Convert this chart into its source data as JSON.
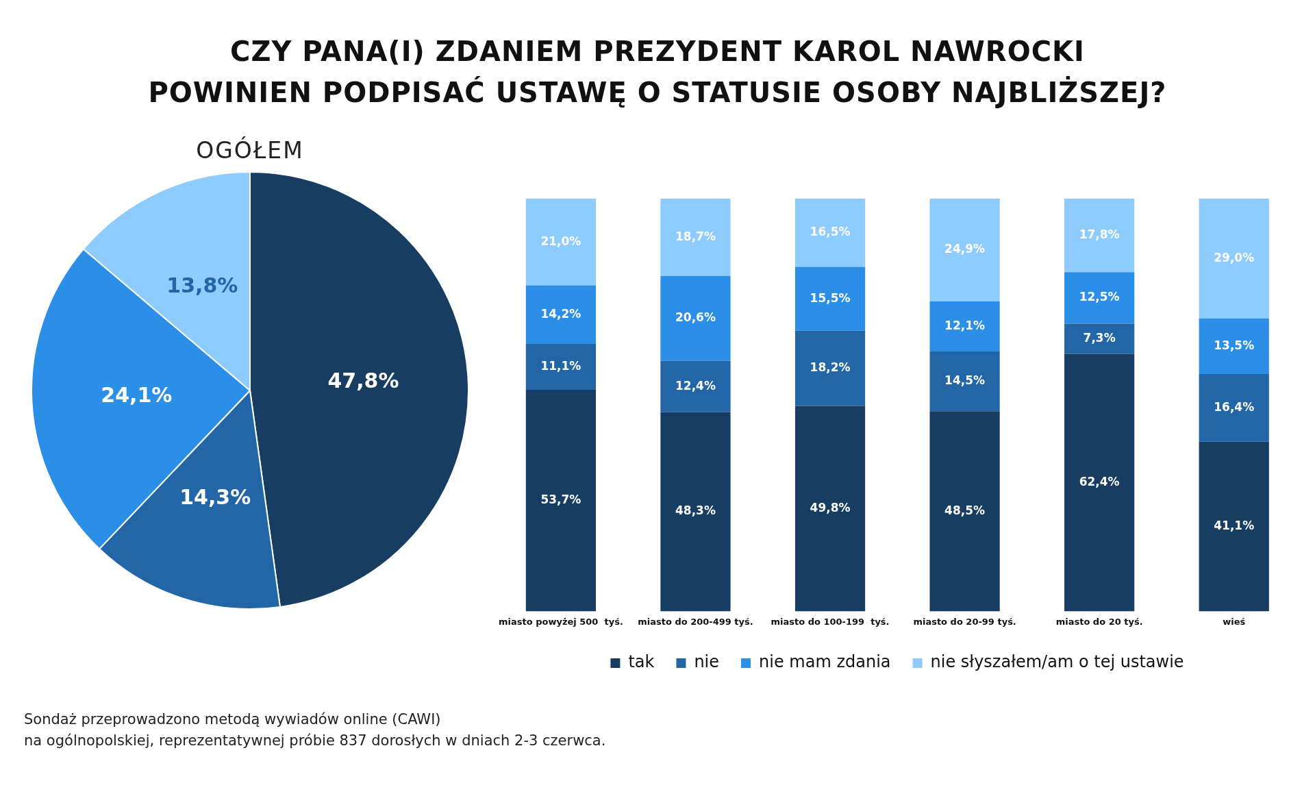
{
  "chart_data": [
    {
      "type": "pie",
      "title": "OGÓŁEM",
      "legend": false,
      "categories": [
        null,
        null,
        null,
        null
      ],
      "values": [
        47.8,
        14.3,
        24.1,
        13.8
      ],
      "colors": [
        "#173d63",
        "#2266a8",
        "#2b8fe8",
        "#8ecbff"
      ],
      "value_labels": [
        "47,8%",
        "14,3%",
        "24,1%",
        "13,8%"
      ]
    },
    {
      "type": "bar",
      "stacked": true,
      "legend": "bottom",
      "grid": false,
      "title": "CZY PANA(I) ZDANIEM PREZYDENT KAROL NAWROCKI\nPOWINIEN PODPISAĆ USTAWĘ O STATUSIE OSOBY NAJBLIŻSZEJ?",
      "categories": [
        "miasto powyżej 500  tyś.",
        "miasto do 200-499 tyś.",
        "miasto do 100-199  tyś.",
        "miasto do 20-99 tyś.",
        "miasto do 20 tyś.",
        "wieś"
      ],
      "series": [
        {
          "name": "tak",
          "color": "#173d63",
          "values": [
            53.7,
            48.3,
            49.8,
            48.5,
            62.4,
            41.1
          ],
          "value_labels": [
            "53,7%",
            "48,3%",
            "49,8%",
            "48,5%",
            "62,4%",
            "41,1%"
          ]
        },
        {
          "name": "nie",
          "color": "#2266a8",
          "values": [
            11.1,
            12.4,
            18.2,
            14.5,
            7.3,
            16.4
          ],
          "value_labels": [
            "11,1%",
            "12,4%",
            "18,2%",
            "14,5%",
            "7,3%",
            "16,4%"
          ]
        },
        {
          "name": "nie mam zdania",
          "color": "#2b8fe8",
          "values": [
            14.2,
            20.6,
            15.5,
            12.1,
            12.5,
            13.5
          ],
          "value_labels": [
            "14,2%",
            "20,6%",
            "15,5%",
            "12,1%",
            "12,5%",
            "13,5%"
          ]
        },
        {
          "name": "nie słyszałem/am o tej ustawie",
          "color": "#8ecbff",
          "values": [
            21.0,
            18.7,
            16.5,
            24.9,
            17.8,
            29.0
          ],
          "value_labels": [
            "21,0%",
            "18,7%",
            "16,5%",
            "24,9%",
            "17,8%",
            "29,0%"
          ]
        }
      ],
      "annotations": [
        "Sondaż przeprowadzono metodą wywiadów online (CAWI)\nna ogólnopolskiej, reprezentatywnej próbie 837 dorosłych w dniach 2-3 czerwca."
      ]
    }
  ]
}
